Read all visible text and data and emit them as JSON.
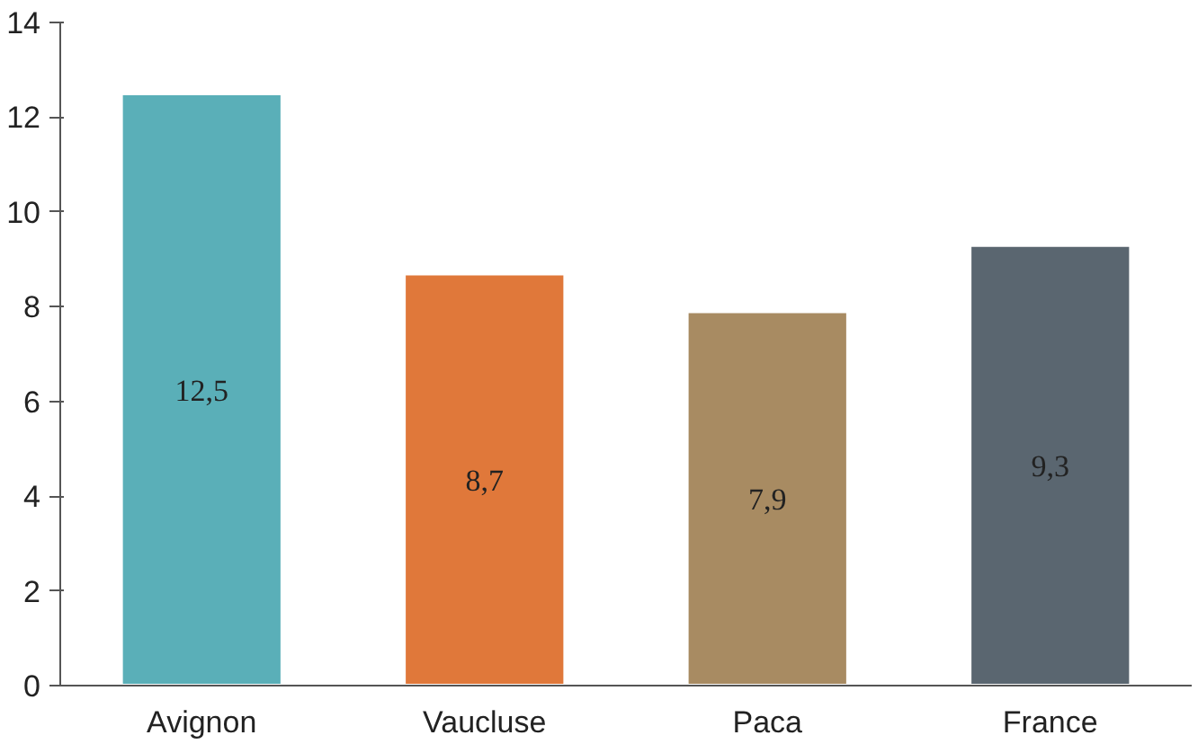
{
  "chart_data": {
    "type": "bar",
    "categories": [
      "Avignon",
      "Vaucluse",
      "Paca",
      "France"
    ],
    "values": [
      12.5,
      8.7,
      7.9,
      9.3
    ],
    "colors": [
      "#5aafb8",
      "#e0783a",
      "#a88b62",
      "#5a6670"
    ],
    "value_labels": [
      "12,5",
      "8,7",
      "7,9",
      "9,3"
    ],
    "ylim": [
      0,
      14
    ],
    "yticks": [
      0,
      2,
      4,
      6,
      8,
      10,
      12,
      14
    ],
    "grid": false
  }
}
